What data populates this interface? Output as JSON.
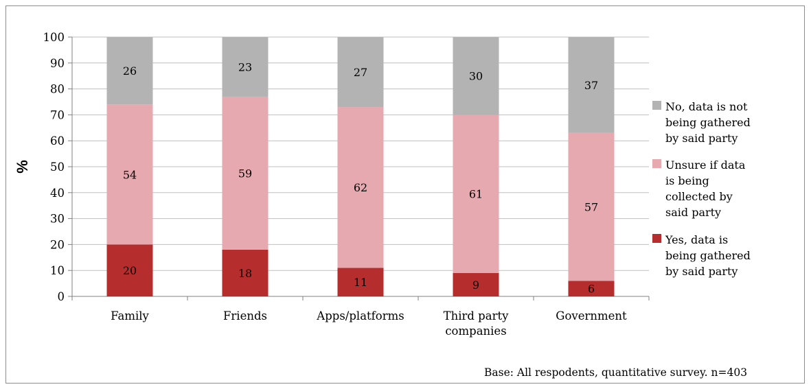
{
  "chart_data": {
    "type": "bar",
    "stacked": true,
    "categories": [
      "Family",
      "Friends",
      "Apps/platforms",
      "Third party companies",
      "Government"
    ],
    "category_lines": [
      [
        "Family"
      ],
      [
        "Friends"
      ],
      [
        "Apps/platforms"
      ],
      [
        "Third party",
        "companies"
      ],
      [
        "Government"
      ]
    ],
    "series": [
      {
        "name": "Yes, data is being gathered by said party",
        "legend_lines": [
          "Yes, data is",
          "being gathered",
          "by said party"
        ],
        "color": "#b52d2c",
        "values": [
          20,
          18,
          11,
          9,
          6
        ]
      },
      {
        "name": "Unsure if data is being collected by said party",
        "legend_lines": [
          "Unsure if data",
          "is being",
          "collected by",
          "said party"
        ],
        "color": "#e6a9b0",
        "values": [
          54,
          59,
          62,
          61,
          57
        ]
      },
      {
        "name": "No, data is not being gathered by said party",
        "legend_lines": [
          "No, data is not",
          "being gathered",
          "by said party"
        ],
        "color": "#b3b3b3",
        "values": [
          26,
          23,
          27,
          30,
          37
        ]
      }
    ],
    "legend_order": [
      2,
      1,
      0
    ],
    "ylabel": "%",
    "xlabel": "",
    "title": "",
    "ylim": [
      0,
      100
    ],
    "yticks": [
      0,
      10,
      20,
      30,
      40,
      50,
      60,
      70,
      80,
      90,
      100
    ],
    "grid": true,
    "legend_position": "right"
  },
  "footnote": "Base: All respodents, quantitative survey. n=403"
}
